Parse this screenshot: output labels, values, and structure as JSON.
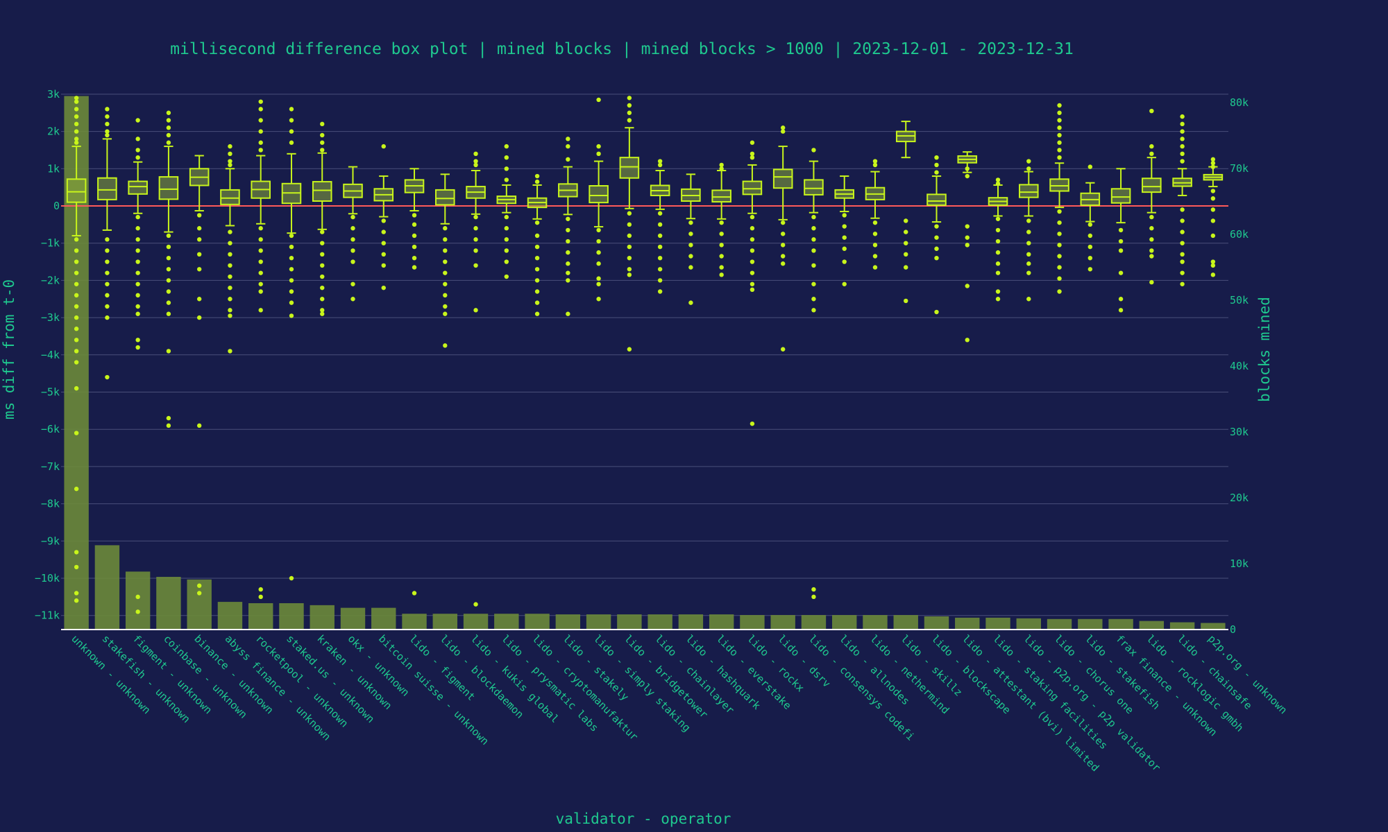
{
  "chart_data": {
    "type": "box",
    "title": "millisecond difference box plot | mined blocks | mined blocks > 1000 | 2023-12-01 - 2023-12-31",
    "xlabel": "validator - operator",
    "ylabel_left": "ms diff from t-0",
    "ylabel_right": "blocks mined",
    "ylim_left": [
      -11500,
      3000
    ],
    "ylim_right": [
      0,
      81500
    ],
    "yticks_left": [
      3000,
      2000,
      1000,
      0,
      -1000,
      -2000,
      -3000,
      -4000,
      -5000,
      -6000,
      -7000,
      -8000,
      -9000,
      -10000,
      -11000
    ],
    "yticks_left_labels": [
      "3k",
      "2k",
      "1k",
      "0",
      "−1k",
      "−2k",
      "−3k",
      "−4k",
      "−5k",
      "−6k",
      "−7k",
      "−8k",
      "−9k",
      "−10k",
      "−11k"
    ],
    "yticks_right": [
      0,
      10000,
      20000,
      30000,
      40000,
      50000,
      60000,
      70000,
      80000
    ],
    "yticks_right_labels": [
      "0",
      "10k",
      "20k",
      "30k",
      "40k",
      "50k",
      "60k",
      "70k",
      "80k"
    ],
    "reference_line_y": 0,
    "grid": true,
    "legend": "none",
    "colors": {
      "background": "#171c4a",
      "text": "#1fc98f",
      "box": "#c8f51b",
      "box_fill": "#8aa83a",
      "bar": "#6b8a3a",
      "grid": "#4a4f7a",
      "zero_line": "#ff5a5a",
      "axis_line": "#ffffff"
    },
    "categories": [
      "unknown - unknown",
      "stakefish - unknown",
      "figment - unknown",
      "coinbase - unknown",
      "binance - unknown",
      "abyss finance - unknown",
      "rocketpool - unknown",
      "staked.us - unknown",
      "kraken - unknown",
      "okx - unknown",
      "bitcoin suisse - unknown",
      "lido - figment",
      "lido - blockdaemon",
      "lido - kukis global",
      "lido - prysmatic labs",
      "lido - cryptomanufaktur",
      "lido - stakely",
      "lido - simply staking",
      "lido - bridgetower",
      "lido - chainlayer",
      "lido - hashquark",
      "lido - everstake",
      "lido - rockx",
      "lido - dsrv",
      "lido - consensys codefi",
      "lido - allnodes",
      "lido - nethermind",
      "lido - skillz",
      "lido - blockscape",
      "lido - attestant (bvi) limited",
      "lido - staking facilities",
      "lido - p2p.org - p2p validator",
      "lido - chorus one",
      "lido - stakefish",
      "frax finance - unknown",
      "lido - rocklogic gmbh",
      "lido - chainsafe",
      "p2p.org - unknown"
    ],
    "blocks_mined": [
      81000,
      12800,
      8800,
      8000,
      7600,
      4200,
      4000,
      4000,
      3700,
      3300,
      3300,
      2400,
      2400,
      2400,
      2400,
      2400,
      2300,
      2300,
      2300,
      2300,
      2300,
      2300,
      2200,
      2200,
      2200,
      2200,
      2200,
      2200,
      2000,
      1800,
      1800,
      1700,
      1600,
      1600,
      1600,
      1300,
      1100,
      1000
    ],
    "boxes": [
      {
        "q1": 100,
        "median": 380,
        "q3": 720,
        "lower_fence": -800,
        "upper_fence": 1600
      },
      {
        "q1": 170,
        "median": 430,
        "q3": 750,
        "lower_fence": -650,
        "upper_fence": 1800
      },
      {
        "q1": 320,
        "median": 520,
        "q3": 660,
        "lower_fence": -200,
        "upper_fence": 1180
      },
      {
        "q1": 180,
        "median": 450,
        "q3": 780,
        "lower_fence": -700,
        "upper_fence": 1600
      },
      {
        "q1": 550,
        "median": 770,
        "q3": 1000,
        "lower_fence": -130,
        "upper_fence": 1350
      },
      {
        "q1": 40,
        "median": 210,
        "q3": 430,
        "lower_fence": -530,
        "upper_fence": 1000
      },
      {
        "q1": 210,
        "median": 440,
        "q3": 660,
        "lower_fence": -480,
        "upper_fence": 1350
      },
      {
        "q1": 70,
        "median": 350,
        "q3": 600,
        "lower_fence": -730,
        "upper_fence": 1400
      },
      {
        "q1": 130,
        "median": 420,
        "q3": 650,
        "lower_fence": -630,
        "upper_fence": 1420
      },
      {
        "q1": 230,
        "median": 400,
        "q3": 580,
        "lower_fence": -210,
        "upper_fence": 1050
      },
      {
        "q1": 140,
        "median": 300,
        "q3": 460,
        "lower_fence": -290,
        "upper_fence": 800
      },
      {
        "q1": 360,
        "median": 540,
        "q3": 700,
        "lower_fence": -130,
        "upper_fence": 1000
      },
      {
        "q1": 30,
        "median": 200,
        "q3": 430,
        "lower_fence": -480,
        "upper_fence": 850
      },
      {
        "q1": 210,
        "median": 370,
        "q3": 520,
        "lower_fence": -220,
        "upper_fence": 950
      },
      {
        "q1": 70,
        "median": 170,
        "q3": 260,
        "lower_fence": -180,
        "upper_fence": 560
      },
      {
        "q1": -40,
        "median": 90,
        "q3": 210,
        "lower_fence": -350,
        "upper_fence": 560
      },
      {
        "q1": 250,
        "median": 420,
        "q3": 590,
        "lower_fence": -230,
        "upper_fence": 1050
      },
      {
        "q1": 90,
        "median": 280,
        "q3": 540,
        "lower_fence": -560,
        "upper_fence": 1200
      },
      {
        "q1": 750,
        "median": 1050,
        "q3": 1300,
        "lower_fence": -70,
        "upper_fence": 2100
      },
      {
        "q1": 280,
        "median": 410,
        "q3": 550,
        "lower_fence": -90,
        "upper_fence": 950
      },
      {
        "q1": 130,
        "median": 280,
        "q3": 450,
        "lower_fence": -340,
        "upper_fence": 850
      },
      {
        "q1": 110,
        "median": 240,
        "q3": 420,
        "lower_fence": -350,
        "upper_fence": 950
      },
      {
        "q1": 310,
        "median": 460,
        "q3": 660,
        "lower_fence": -200,
        "upper_fence": 1100
      },
      {
        "q1": 480,
        "median": 780,
        "q3": 980,
        "lower_fence": -370,
        "upper_fence": 1600
      },
      {
        "q1": 300,
        "median": 470,
        "q3": 700,
        "lower_fence": -180,
        "upper_fence": 1200
      },
      {
        "q1": 210,
        "median": 320,
        "q3": 430,
        "lower_fence": -150,
        "upper_fence": 800
      },
      {
        "q1": 170,
        "median": 320,
        "q3": 490,
        "lower_fence": -330,
        "upper_fence": 920
      },
      {
        "q1": 1730,
        "median": 1880,
        "q3": 2000,
        "lower_fence": 1300,
        "upper_fence": 2270
      },
      {
        "q1": 20,
        "median": 130,
        "q3": 310,
        "lower_fence": -430,
        "upper_fence": 800
      },
      {
        "q1": 1160,
        "median": 1250,
        "q3": 1340,
        "lower_fence": 900,
        "upper_fence": 1450
      },
      {
        "q1": 20,
        "median": 120,
        "q3": 220,
        "lower_fence": -270,
        "upper_fence": 560
      },
      {
        "q1": 230,
        "median": 370,
        "q3": 570,
        "lower_fence": -270,
        "upper_fence": 920
      },
      {
        "q1": 400,
        "median": 540,
        "q3": 720,
        "lower_fence": -40,
        "upper_fence": 1150
      },
      {
        "q1": 20,
        "median": 170,
        "q3": 340,
        "lower_fence": -420,
        "upper_fence": 620
      },
      {
        "q1": 80,
        "median": 240,
        "q3": 460,
        "lower_fence": -450,
        "upper_fence": 1000
      },
      {
        "q1": 370,
        "median": 520,
        "q3": 740,
        "lower_fence": -180,
        "upper_fence": 1300
      },
      {
        "q1": 530,
        "median": 620,
        "q3": 740,
        "lower_fence": 280,
        "upper_fence": 1000
      },
      {
        "q1": 700,
        "median": 770,
        "q3": 840,
        "lower_fence": 520,
        "upper_fence": 1050
      }
    ],
    "outliers": [
      [
        2900,
        2800,
        2600,
        2400,
        2200,
        2000,
        1800,
        1700,
        -900,
        -1200,
        -1500,
        -1800,
        -2100,
        -2400,
        -2700,
        -3000,
        -3300,
        -3600,
        -3900,
        -4200,
        -4900,
        -6100,
        -7600,
        -9300,
        -9700,
        -10400,
        -10600
      ],
      [
        2600,
        2400,
        2200,
        2000,
        1900,
        -900,
        -1200,
        -1500,
        -1800,
        -2100,
        -2400,
        -2700,
        -3000,
        -4600
      ],
      [
        2300,
        1800,
        1500,
        1300,
        -300,
        -600,
        -900,
        -1200,
        -1500,
        -1800,
        -2100,
        -2400,
        -2700,
        -2900,
        -3600,
        -3800,
        -10500,
        -10900
      ],
      [
        2500,
        2300,
        2100,
        1900,
        1700,
        -800,
        -1100,
        -1400,
        -1700,
        -2000,
        -2300,
        -2600,
        -2900,
        -3900,
        -5700,
        -5900
      ],
      [
        -250,
        -600,
        -900,
        -1300,
        -1700,
        -2500,
        -3000,
        -5900,
        -10200,
        -10400
      ],
      [
        1600,
        1400,
        1200,
        1100,
        -700,
        -1000,
        -1300,
        -1600,
        -1900,
        -2200,
        -2500,
        -2800,
        -2950,
        -3900
      ],
      [
        2800,
        2600,
        2300,
        2000,
        1700,
        1500,
        -600,
        -900,
        -1200,
        -1500,
        -1800,
        -2100,
        -2300,
        -2800,
        -10300,
        -10500
      ],
      [
        2600,
        2300,
        2000,
        1700,
        -800,
        -1100,
        -1400,
        -1700,
        -2000,
        -2300,
        -2600,
        -2950,
        -10000
      ],
      [
        2200,
        1900,
        1700,
        1500,
        -700,
        -1000,
        -1300,
        -1600,
        -1900,
        -2200,
        -2500,
        -2800,
        -2900
      ],
      [
        -300,
        -600,
        -900,
        -1200,
        -1500,
        -2100,
        -2500
      ],
      [
        1600,
        -400,
        -700,
        -1000,
        -1300,
        -1600,
        -2200
      ],
      [
        -250,
        -500,
        -800,
        -1100,
        -1400,
        -1650,
        -10400
      ],
      [
        -600,
        -900,
        -1200,
        -1500,
        -1800,
        -2100,
        -2400,
        -2700,
        -2900,
        -3750
      ],
      [
        1400,
        1200,
        1100,
        -300,
        -600,
        -900,
        -1200,
        -1600,
        -2800,
        -10700
      ],
      [
        1600,
        1300,
        1000,
        700,
        -300,
        -600,
        -900,
        -1200,
        -1500,
        -1900
      ],
      [
        800,
        650,
        -450,
        -800,
        -1100,
        -1400,
        -1700,
        -2000,
        -2300,
        -2600,
        -2900
      ],
      [
        1800,
        1600,
        1250,
        -350,
        -650,
        -950,
        -1250,
        -1550,
        -1800,
        -2000,
        -2900
      ],
      [
        2850,
        1600,
        1400,
        -650,
        -950,
        -1250,
        -1550,
        -1950,
        -2100,
        -2500
      ],
      [
        2900,
        2700,
        2500,
        2300,
        -200,
        -500,
        -800,
        -1100,
        -1400,
        -1700,
        -1850,
        -3850
      ],
      [
        1200,
        1100,
        -200,
        -500,
        -800,
        -1100,
        -1400,
        -1700,
        -2000,
        -2300
      ],
      [
        -450,
        -750,
        -1050,
        -1350,
        -1650,
        -2600
      ],
      [
        1100,
        1000,
        -450,
        -750,
        -1050,
        -1350,
        -1650,
        -1850
      ],
      [
        1700,
        1400,
        1300,
        -300,
        -600,
        -900,
        -1200,
        -1500,
        -1800,
        -2100,
        -2250,
        -5850
      ],
      [
        2100,
        2000,
        -450,
        -750,
        -1050,
        -1350,
        -1550,
        -3850
      ],
      [
        1500,
        -300,
        -600,
        -900,
        -1200,
        -1600,
        -2100,
        -2500,
        -2800,
        -10300,
        -10500
      ],
      [
        -250,
        -550,
        -850,
        -1150,
        -1500,
        -2100
      ],
      [
        1200,
        1100,
        -450,
        -750,
        -1050,
        -1350,
        -1650
      ],
      [
        -400,
        -700,
        -1000,
        -1300,
        -1650,
        -2550
      ],
      [
        1300,
        1100,
        900,
        -550,
        -850,
        -1150,
        -1400,
        -2850
      ],
      [
        1000,
        800,
        -550,
        -850,
        -1050,
        -2150,
        -3600
      ],
      [
        700,
        600,
        -350,
        -650,
        -950,
        -1250,
        -1550,
        -1800,
        -2300,
        -2500
      ],
      [
        1200,
        1000,
        -400,
        -700,
        -1000,
        -1300,
        -1550,
        -1800,
        -2500
      ],
      [
        2700,
        2500,
        2300,
        2100,
        1900,
        1700,
        1500,
        1300,
        -150,
        -450,
        -750,
        -1050,
        -1350,
        -1650,
        -1950,
        -2300
      ],
      [
        1050,
        -500,
        -800,
        -1100,
        -1400,
        -1700
      ],
      [
        -650,
        -950,
        -1200,
        -1800,
        -2500,
        -2800
      ],
      [
        2550,
        1600,
        1400,
        -300,
        -600,
        -900,
        -1200,
        -1350,
        -2050
      ],
      [
        2400,
        2200,
        2000,
        1800,
        1600,
        1400,
        1200,
        -100,
        -400,
        -700,
        -1000,
        -1300,
        -1500,
        -1800,
        -2100
      ],
      [
        1250,
        1150,
        1050,
        400,
        200,
        -100,
        -400,
        -800,
        -1500,
        -1600,
        -1850
      ]
    ]
  }
}
